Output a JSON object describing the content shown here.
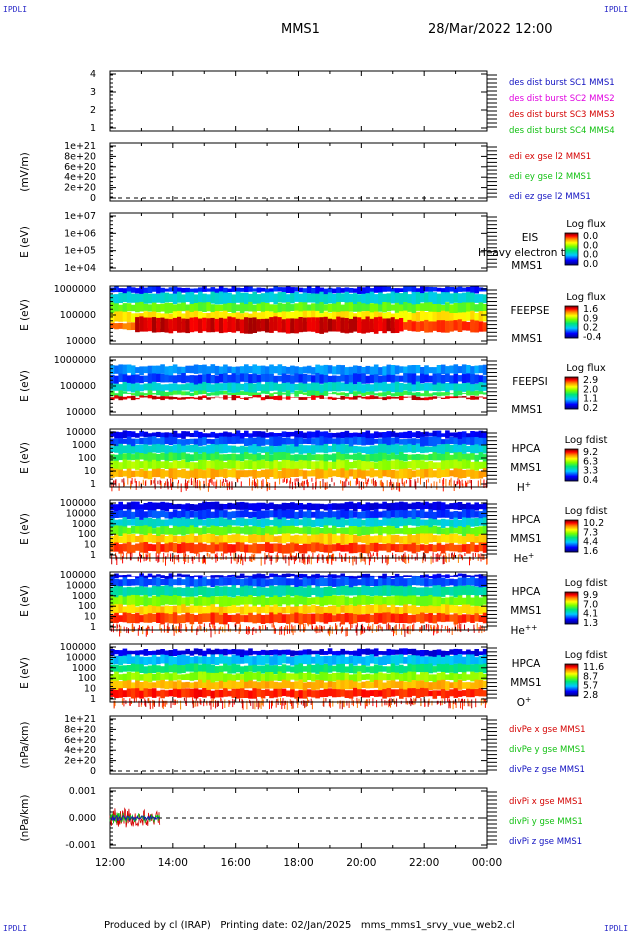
{
  "corners": {
    "tl": "IPDLI",
    "tr": "IPDLI",
    "bl": "IPDLI",
    "br": "IPDLI"
  },
  "header": {
    "mission": "MMS1",
    "date": "28/Mar/2022 12:00"
  },
  "footer": {
    "text": "Produced by cl (IRAP)   Printing date: 02/Jan/2025   mms_mms1_srvy_vue_web2.cl"
  },
  "colors": {
    "red": "#d40000",
    "green": "#10c010",
    "blue": "#1010c0",
    "magenta": "#e000e0",
    "grid": "#000000"
  },
  "time_axis": {
    "labels": [
      "12:00",
      "14:00",
      "16:00",
      "18:00",
      "20:00",
      "22:00",
      "00:00"
    ],
    "start_hour": 12,
    "end_hour": 24
  },
  "chart_data": [
    {
      "type": "line",
      "ylabel": "",
      "ticks": [
        "1",
        "2",
        "3",
        "4"
      ],
      "ylim": [
        0.7,
        4.3
      ],
      "series": [
        {
          "name": "des dist burst SC1 MMS1",
          "color": "#1010c0"
        },
        {
          "name": "des dist burst SC2 MMS2",
          "color": "#e000e0"
        },
        {
          "name": "des dist burst SC3 MMS3",
          "color": "#d40000"
        },
        {
          "name": "des dist burst SC4 MMS4",
          "color": "#10c010"
        }
      ]
    },
    {
      "type": "line",
      "ylabel": "(mV/m)",
      "ticks": [
        "0",
        "2e+20",
        "4e+20",
        "6e+20",
        "8e+20",
        "1e+21"
      ],
      "ylim": [
        0,
        1e+21
      ],
      "series": [
        {
          "name": "edi ex gse l2 MMS1",
          "color": "#d40000"
        },
        {
          "name": "edi ey gse l2 MMS1",
          "color": "#10c010"
        },
        {
          "name": "edi ez gse l2 MMS1",
          "color": "#1010c0"
        }
      ]
    },
    {
      "type": "heatmap",
      "ylabel": "E (eV)",
      "ticks": [
        "1e+04",
        "1e+05",
        "1e+06",
        "1e+07"
      ],
      "instrument": [
        "EIS",
        "MMS1"
      ],
      "overlay": "Heavy electron to",
      "cbar_title": "Log flux",
      "cbar_ticks": [
        "0.0",
        "0.0",
        "0.0",
        "0.0"
      ]
    },
    {
      "type": "heatmap",
      "ylabel": "E (eV)",
      "ticks": [
        "10000",
        "100000",
        "1000000"
      ],
      "instrument": [
        "FEEPSE",
        "MMS1"
      ],
      "cbar_title": "Log flux",
      "cbar_ticks": [
        "1.6",
        "0.9",
        "0.2",
        "-0.4"
      ]
    },
    {
      "type": "heatmap",
      "ylabel": "E (eV)",
      "ticks": [
        "10000",
        "100000",
        "1000000"
      ],
      "instrument": [
        "FEEPSI",
        "MMS1"
      ],
      "cbar_title": "Log flux",
      "cbar_ticks": [
        "2.9",
        "2.0",
        "1.1",
        "0.2"
      ]
    },
    {
      "type": "heatmap",
      "ylabel": "E (eV)",
      "ticks": [
        "1",
        "10",
        "100",
        "1000",
        "10000"
      ],
      "instrument": [
        "HPCA",
        "MMS1",
        "H+"
      ],
      "cbar_title": "Log fdist",
      "cbar_ticks": [
        "9.2",
        "6.3",
        "3.3",
        "0.4"
      ]
    },
    {
      "type": "heatmap",
      "ylabel": "E (eV)",
      "ticks": [
        "1",
        "10",
        "100",
        "1000",
        "10000",
        "100000"
      ],
      "instrument": [
        "HPCA",
        "MMS1",
        "He+"
      ],
      "cbar_title": "Log fdist",
      "cbar_ticks": [
        "10.2",
        "7.3",
        "4.4",
        "1.6"
      ]
    },
    {
      "type": "heatmap",
      "ylabel": "E (eV)",
      "ticks": [
        "1",
        "10",
        "100",
        "1000",
        "10000",
        "100000"
      ],
      "instrument": [
        "HPCA",
        "MMS1",
        "He++"
      ],
      "cbar_title": "Log fdist",
      "cbar_ticks": [
        "9.9",
        "7.0",
        "4.1",
        "1.3"
      ]
    },
    {
      "type": "heatmap",
      "ylabel": "E (eV)",
      "ticks": [
        "1",
        "10",
        "100",
        "1000",
        "10000",
        "100000"
      ],
      "instrument": [
        "HPCA",
        "MMS1",
        "O+"
      ],
      "cbar_title": "Log fdist",
      "cbar_ticks": [
        "11.6",
        "8.7",
        "5.7",
        "2.8"
      ]
    },
    {
      "type": "line",
      "ylabel": "(nPa/km)",
      "ticks": [
        "0",
        "2e+20",
        "4e+20",
        "6e+20",
        "8e+20",
        "1e+21"
      ],
      "ylim": [
        0,
        1e+21
      ],
      "series": [
        {
          "name": "divPe x gse MMS1",
          "color": "#d40000"
        },
        {
          "name": "divPe y gse MMS1",
          "color": "#10c010"
        },
        {
          "name": "divPe z gse MMS1",
          "color": "#1010c0"
        }
      ]
    },
    {
      "type": "line",
      "ylabel": "(nPa/km)",
      "ticks": [
        "-0.001",
        "0.000",
        "0.001"
      ],
      "ylim": [
        -0.0015,
        0.0015
      ],
      "series": [
        {
          "name": "divPi x gse MMS1",
          "color": "#d40000"
        },
        {
          "name": "divPi y gse MMS1",
          "color": "#10c010"
        },
        {
          "name": "divPi z gse MMS1",
          "color": "#1010c0"
        }
      ]
    }
  ]
}
